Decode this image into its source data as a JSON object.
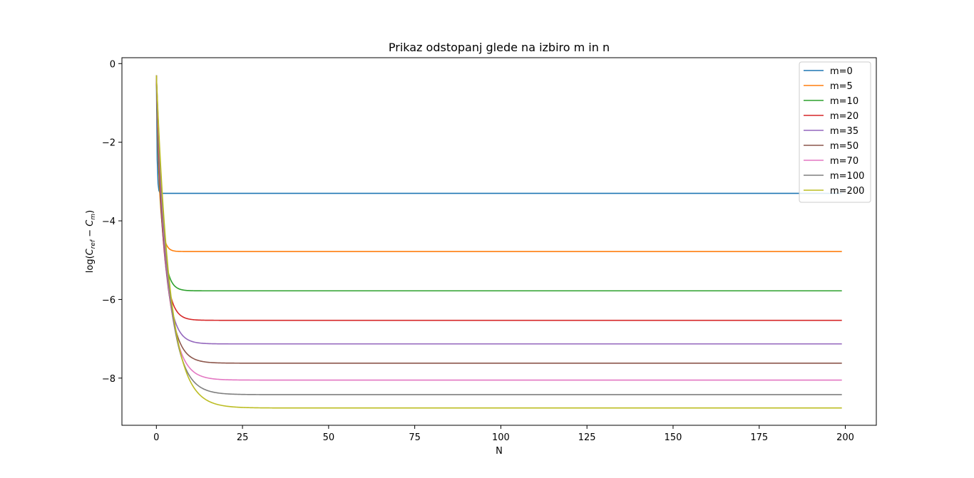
{
  "chart_data": {
    "type": "line",
    "title": "Prikaz odstopanj glede na izbiro m in n",
    "xlabel": "N",
    "ylabel": {
      "prefix": "log(",
      "c1": "C",
      "sub1": "ref",
      "op": " − ",
      "c2": "C",
      "sub2": "m",
      "suffix": ")"
    },
    "xlim": [
      -10,
      209
    ],
    "ylim": [
      -9.2,
      0.15
    ],
    "xticks": [
      0,
      25,
      50,
      75,
      100,
      125,
      150,
      175,
      200
    ],
    "yticks": [
      0,
      -2,
      -4,
      -6,
      -8
    ],
    "grid": false,
    "legend_position": "top-right",
    "series": [
      {
        "name": "m=0",
        "color": "#1f77b4",
        "start": -0.3,
        "final": -3.3,
        "tau": 0.2
      },
      {
        "name": "m=5",
        "color": "#ff7f0e",
        "start": -0.3,
        "final": -4.78,
        "tau": 0.9
      },
      {
        "name": "m=10",
        "color": "#2ca02c",
        "start": -0.3,
        "final": -5.78,
        "tau": 1.4
      },
      {
        "name": "m=20",
        "color": "#d62728",
        "start": -0.3,
        "final": -6.53,
        "tau": 1.8
      },
      {
        "name": "m=35",
        "color": "#9467bd",
        "start": -0.3,
        "final": -7.13,
        "tau": 2.2
      },
      {
        "name": "m=50",
        "color": "#8c564b",
        "start": -0.3,
        "final": -7.62,
        "tau": 2.6
      },
      {
        "name": "m=70",
        "color": "#e377c2",
        "start": -0.3,
        "final": -8.05,
        "tau": 3.0
      },
      {
        "name": "m=100",
        "color": "#7f7f7f",
        "start": -0.3,
        "final": -8.42,
        "tau": 3.4
      },
      {
        "name": "m=200",
        "color": "#bcbd22",
        "start": -0.3,
        "final": -8.76,
        "tau": 3.9
      }
    ]
  }
}
